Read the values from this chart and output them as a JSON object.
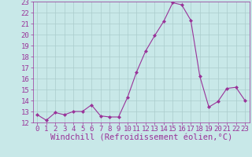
{
  "x": [
    0,
    1,
    2,
    3,
    4,
    5,
    6,
    7,
    8,
    9,
    10,
    11,
    12,
    13,
    14,
    15,
    16,
    17,
    18,
    19,
    20,
    21,
    22,
    23
  ],
  "y": [
    12.7,
    12.2,
    12.9,
    12.7,
    13.0,
    13.0,
    13.6,
    12.6,
    12.5,
    12.5,
    14.3,
    16.6,
    18.5,
    19.9,
    21.2,
    22.9,
    22.7,
    21.3,
    16.2,
    13.4,
    13.9,
    15.1,
    15.2,
    14.0
  ],
  "line_color": "#993399",
  "marker": "D",
  "marker_size": 2.0,
  "bg_color": "#c8e8e8",
  "grid_color": "#aacccc",
  "xlabel": "Windchill (Refroidissement éolien,°C)",
  "xlabel_color": "#993399",
  "xlabel_fontsize": 7.5,
  "tick_color": "#993399",
  "tick_fontsize": 6.5,
  "ylim": [
    12,
    23
  ],
  "xlim": [
    -0.5,
    23.5
  ],
  "yticks": [
    12,
    13,
    14,
    15,
    16,
    17,
    18,
    19,
    20,
    21,
    22,
    23
  ],
  "xticks": [
    0,
    1,
    2,
    3,
    4,
    5,
    6,
    7,
    8,
    9,
    10,
    11,
    12,
    13,
    14,
    15,
    16,
    17,
    18,
    19,
    20,
    21,
    22,
    23
  ]
}
